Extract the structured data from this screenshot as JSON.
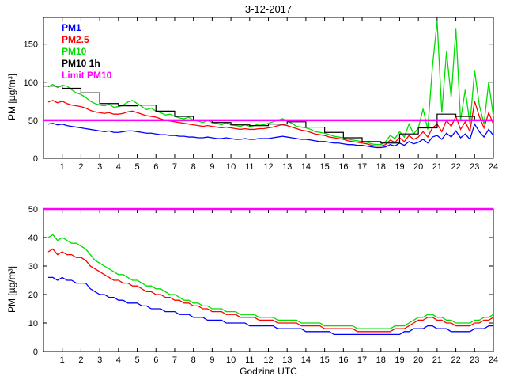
{
  "chart_data": [
    {
      "type": "line",
      "panel": "top",
      "title": "3-12-2017",
      "xlabel": "",
      "ylabel": "PM [µg/m³]",
      "xlim": [
        0,
        24
      ],
      "ylim": [
        0,
        185
      ],
      "xticks": [
        1,
        2,
        3,
        4,
        5,
        6,
        7,
        8,
        9,
        10,
        11,
        12,
        13,
        14,
        15,
        16,
        17,
        18,
        19,
        20,
        21,
        22,
        23,
        24
      ],
      "yticks": [
        0,
        50,
        100,
        150
      ],
      "x_start": 0.25,
      "x_step": 0.25,
      "legend_position": "top-left",
      "series": [
        {
          "name": "PM1",
          "color": "#0000ff",
          "line_type": "line",
          "values": [
            45,
            46,
            44,
            45,
            43,
            42,
            41,
            40,
            39,
            38,
            37,
            36,
            35,
            36,
            34,
            34,
            35,
            36,
            36,
            35,
            34,
            33,
            33,
            32,
            31,
            31,
            30,
            30,
            29,
            29,
            28,
            28,
            27,
            27,
            28,
            27,
            26,
            26,
            27,
            26,
            25,
            25,
            26,
            25,
            25,
            26,
            26,
            26,
            27,
            28,
            29,
            28,
            27,
            26,
            25,
            25,
            24,
            23,
            22,
            22,
            21,
            20,
            20,
            19,
            18,
            18,
            17,
            17,
            16,
            15,
            14,
            14,
            15,
            18,
            16,
            20,
            17,
            22,
            19,
            21,
            25,
            20,
            28,
            30,
            25,
            33,
            28,
            36,
            27,
            32,
            25,
            45,
            35,
            28,
            38,
            30
          ]
        },
        {
          "name": "PM2.5",
          "color": "#ff0000",
          "line_type": "line",
          "values": [
            74,
            76,
            73,
            75,
            72,
            70,
            69,
            68,
            66,
            63,
            61,
            60,
            59,
            60,
            58,
            58,
            59,
            61,
            62,
            60,
            58,
            56,
            55,
            54,
            52,
            50,
            49,
            48,
            47,
            46,
            45,
            44,
            43,
            42,
            43,
            42,
            41,
            40,
            41,
            40,
            39,
            38,
            39,
            38,
            38,
            39,
            39,
            40,
            41,
            43,
            44,
            43,
            41,
            39,
            37,
            36,
            34,
            32,
            31,
            30,
            28,
            27,
            26,
            25,
            23,
            22,
            21,
            20,
            19,
            17,
            16,
            16,
            18,
            24,
            21,
            27,
            22,
            30,
            25,
            28,
            35,
            28,
            40,
            45,
            35,
            50,
            42,
            55,
            38,
            48,
            35,
            75,
            55,
            40,
            60,
            45
          ]
        },
        {
          "name": "PM10",
          "color": "#00dd00",
          "line_type": "line",
          "values": [
            94,
            97,
            93,
            96,
            95,
            90,
            86,
            84,
            80,
            75,
            72,
            70,
            69,
            71,
            67,
            68,
            70,
            74,
            76,
            72,
            68,
            64,
            66,
            62,
            60,
            57,
            58,
            55,
            53,
            52,
            54,
            50,
            49,
            47,
            50,
            47,
            46,
            44,
            47,
            44,
            43,
            42,
            44,
            42,
            43,
            45,
            44,
            46,
            48,
            50,
            52,
            49,
            46,
            42,
            41,
            40,
            38,
            35,
            34,
            33,
            31,
            29,
            28,
            27,
            25,
            24,
            23,
            22,
            21,
            19,
            18,
            18,
            22,
            30,
            26,
            35,
            28,
            45,
            32,
            40,
            65,
            38,
            120,
            180,
            60,
            140,
            80,
            170,
            50,
            90,
            45,
            115,
            70,
            45,
            100,
            55
          ]
        },
        {
          "name": "PM10 1h",
          "color": "#000000",
          "line_type": "step",
          "values": [
            95,
            92,
            86,
            72,
            69,
            70,
            62,
            55,
            50,
            47,
            44,
            43,
            45,
            48,
            41,
            34,
            27,
            22,
            20,
            32,
            40,
            58,
            55,
            50
          ]
        },
        {
          "name": "Limit PM10",
          "color": "#ff00ff",
          "line_type": "hline",
          "value": 50
        }
      ]
    },
    {
      "type": "line",
      "panel": "bottom",
      "title": "",
      "xlabel": "Godzina UTC",
      "ylabel": "PM [µg/m³]",
      "xlim": [
        0,
        24
      ],
      "ylim": [
        0,
        50
      ],
      "xticks": [
        1,
        2,
        3,
        4,
        5,
        6,
        7,
        8,
        9,
        10,
        11,
        12,
        13,
        14,
        15,
        16,
        17,
        18,
        19,
        20,
        21,
        22,
        23,
        24
      ],
      "yticks": [
        0,
        10,
        20,
        30,
        40,
        50
      ],
      "x_start": 0.25,
      "x_step": 0.25,
      "series": [
        {
          "name": "PM1",
          "color": "#0000ff",
          "line_type": "line",
          "values": [
            26,
            26,
            25,
            26,
            25,
            25,
            24,
            24,
            24,
            22,
            21,
            20,
            20,
            19,
            19,
            18,
            18,
            17,
            17,
            17,
            16,
            16,
            15,
            15,
            15,
            14,
            14,
            14,
            13,
            13,
            13,
            12,
            12,
            12,
            11,
            11,
            11,
            11,
            10,
            10,
            10,
            10,
            10,
            9,
            9,
            9,
            9,
            9,
            9,
            8,
            8,
            8,
            8,
            8,
            8,
            7,
            7,
            7,
            7,
            7,
            7,
            6,
            6,
            6,
            6,
            6,
            6,
            6,
            6,
            6,
            6,
            6,
            6,
            6,
            6,
            6,
            7,
            7,
            8,
            8,
            8,
            9,
            9,
            8,
            8,
            8,
            7,
            7,
            7,
            7,
            7,
            8,
            8,
            8,
            9,
            9
          ]
        },
        {
          "name": "PM2.5",
          "color": "#ff0000",
          "line_type": "line",
          "values": [
            35,
            36,
            34,
            35,
            34,
            34,
            33,
            33,
            32,
            30,
            29,
            28,
            27,
            26,
            25,
            25,
            24,
            24,
            23,
            23,
            22,
            21,
            21,
            20,
            20,
            19,
            19,
            18,
            18,
            17,
            17,
            16,
            16,
            15,
            15,
            14,
            14,
            14,
            13,
            13,
            13,
            12,
            12,
            12,
            12,
            11,
            11,
            11,
            11,
            10,
            10,
            10,
            10,
            10,
            9,
            9,
            9,
            9,
            9,
            8,
            8,
            8,
            8,
            8,
            8,
            8,
            7,
            7,
            7,
            7,
            7,
            7,
            7,
            7,
            8,
            8,
            8,
            9,
            10,
            11,
            11,
            12,
            12,
            11,
            11,
            10,
            10,
            9,
            9,
            9,
            9,
            10,
            10,
            11,
            11,
            12
          ]
        },
        {
          "name": "PM10",
          "color": "#00dd00",
          "line_type": "line",
          "values": [
            40,
            41,
            39,
            40,
            39,
            38,
            38,
            37,
            36,
            34,
            32,
            31,
            30,
            29,
            28,
            27,
            27,
            26,
            25,
            25,
            24,
            23,
            23,
            22,
            22,
            21,
            20,
            20,
            19,
            18,
            18,
            17,
            17,
            16,
            16,
            15,
            15,
            15,
            14,
            14,
            14,
            13,
            13,
            13,
            13,
            12,
            12,
            12,
            12,
            11,
            11,
            11,
            11,
            11,
            10,
            10,
            10,
            10,
            10,
            9,
            9,
            9,
            9,
            9,
            9,
            9,
            8,
            8,
            8,
            8,
            8,
            8,
            8,
            8,
            9,
            9,
            9,
            10,
            11,
            12,
            12,
            13,
            13,
            12,
            12,
            11,
            11,
            10,
            10,
            10,
            10,
            11,
            11,
            12,
            12,
            13
          ]
        },
        {
          "name": "Limit PM10",
          "color": "#ff00ff",
          "line_type": "hline",
          "value": 50
        }
      ]
    }
  ]
}
